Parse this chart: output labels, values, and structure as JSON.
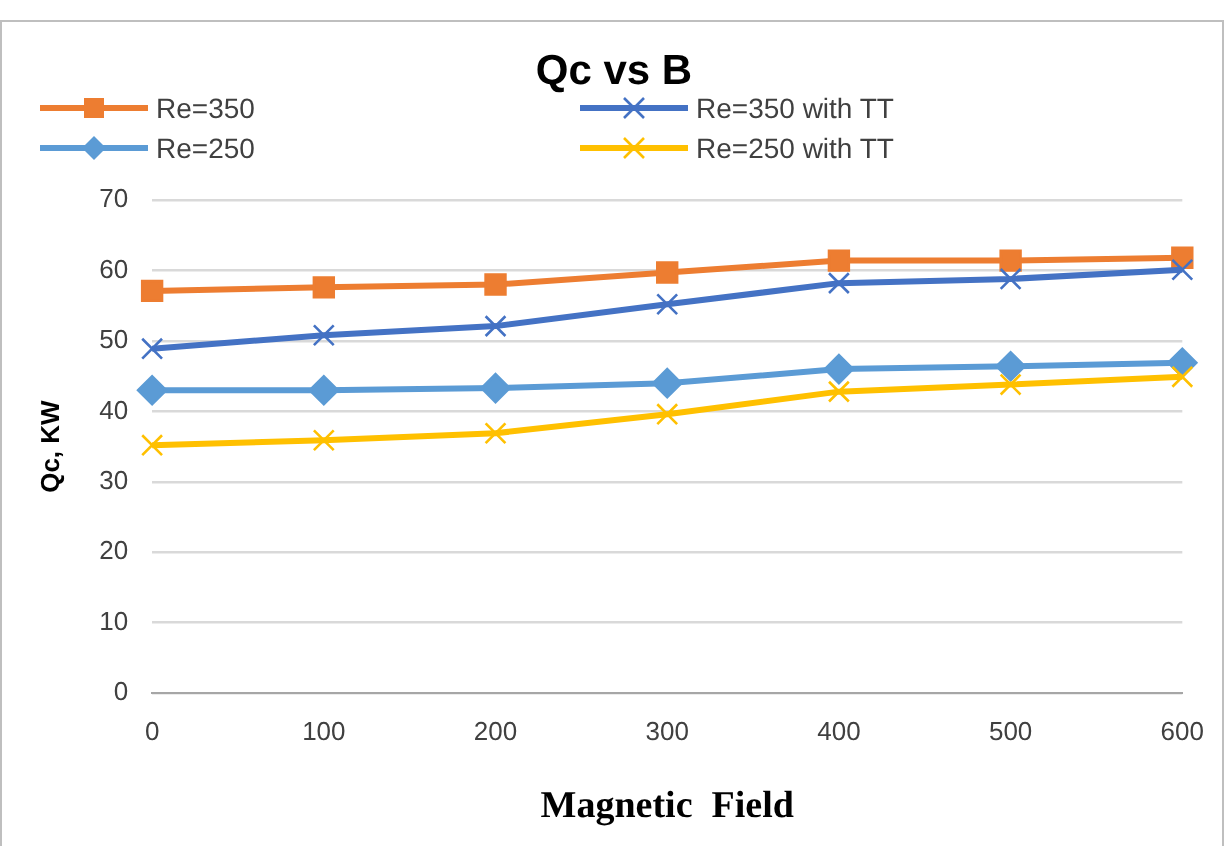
{
  "chart_data": {
    "type": "line",
    "title": "Qc vs B",
    "xlabel": "Magnetic  Field",
    "ylabel": "Qc, KW",
    "categories": [
      "0",
      "100",
      "200",
      "300",
      "400",
      "500",
      "600"
    ],
    "ylim": [
      0,
      70
    ],
    "yticks": [
      0,
      10,
      20,
      30,
      40,
      50,
      60,
      70
    ],
    "grid": "y",
    "legend": "top",
    "series": [
      {
        "name": "Re=350",
        "color": "#ed7d31",
        "marker": "square",
        "values": [
          57.1,
          57.6,
          58.0,
          59.7,
          61.4,
          61.4,
          61.8
        ]
      },
      {
        "name": "Re=350 with TT",
        "color": "#4472c4",
        "marker": "cross",
        "values": [
          48.9,
          50.8,
          52.1,
          55.2,
          58.2,
          58.8,
          60.1
        ]
      },
      {
        "name": "Re=250",
        "color": "#5b9bd5",
        "marker": "diamond",
        "values": [
          43.0,
          43.0,
          43.3,
          44.0,
          46.0,
          46.4,
          46.9
        ]
      },
      {
        "name": "Re=250 with TT",
        "color": "#ffc000",
        "marker": "cross",
        "values": [
          35.2,
          35.9,
          36.9,
          39.6,
          42.8,
          43.8,
          44.9
        ]
      }
    ]
  }
}
